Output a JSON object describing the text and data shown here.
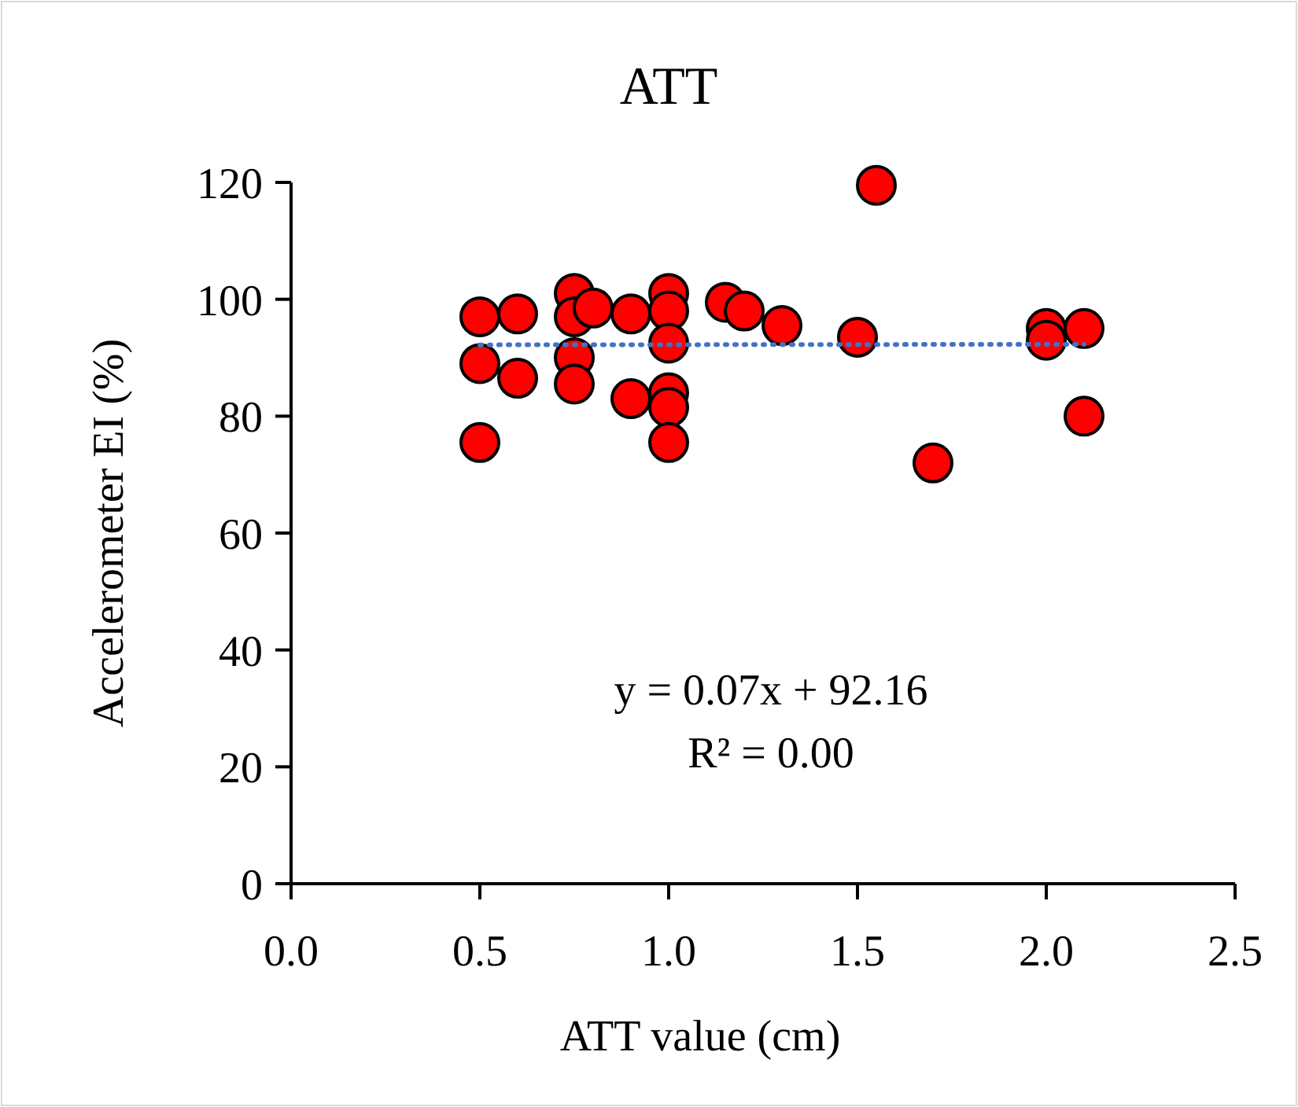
{
  "chart_data": {
    "type": "scatter",
    "title": "ATT",
    "xlabel": "ATT value (cm)",
    "ylabel": "Accelerometer EI (%)",
    "xlim": [
      0,
      2.5
    ],
    "xticks": [
      {
        "value": 0,
        "label": "0.0"
      },
      {
        "value": 0.5,
        "label": "0.5"
      },
      {
        "value": 1,
        "label": "1.0"
      },
      {
        "value": 1.5,
        "label": "1.5"
      },
      {
        "value": 2,
        "label": "2.0"
      },
      {
        "value": 2.5,
        "label": "2.5"
      }
    ],
    "ylim": [
      0,
      120
    ],
    "yticks": [
      0,
      20,
      40,
      60,
      80,
      100,
      120
    ],
    "grid": false,
    "marker": "circle",
    "series": [
      {
        "color": "#ff0000",
        "x": [
          0.5,
          0.5,
          0.5,
          0.6,
          0.6,
          0.75,
          0.75,
          0.75,
          0.75,
          0.8,
          0.9,
          0.9,
          1.0,
          1.0,
          1.0,
          1.0,
          1.0,
          1.0,
          1.15,
          1.2,
          1.3,
          1.5,
          1.55,
          1.7,
          2.0,
          2.0,
          2.1,
          2.1
        ],
        "values": [
          97,
          89,
          75.5,
          97.5,
          86.5,
          101,
          97,
          90,
          85.5,
          98.5,
          97.5,
          83,
          101,
          98,
          92.5,
          84,
          81.5,
          75.5,
          99.5,
          98,
          95.5,
          93.5,
          119.5,
          72,
          95,
          93,
          95,
          80
        ]
      },
      {
        "type": "line",
        "color": "#4472c4",
        "line_style": "dotted",
        "marker": "none",
        "x": [
          0.5,
          2.1
        ],
        "values": [
          92.2,
          92.3
        ]
      }
    ],
    "annotations": [
      {
        "text": "y = 0.07x + 92.16"
      },
      {
        "text": "R² = 0.00"
      }
    ]
  }
}
